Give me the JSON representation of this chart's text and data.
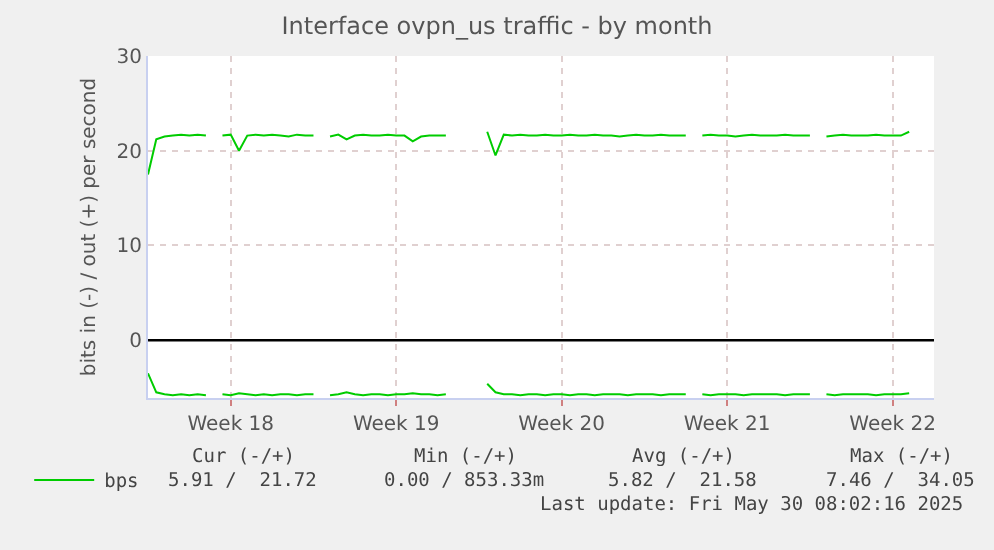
{
  "chart_data": {
    "type": "line",
    "title": "Interface ovpn_us traffic - by month",
    "ylabel": "bits in (-) / out (+) per second",
    "categories": [
      null,
      null,
      null,
      null,
      null,
      null,
      null,
      null,
      null,
      null,
      "Week 18",
      null,
      null,
      null,
      null,
      null,
      null,
      null,
      null,
      null,
      null,
      null,
      null,
      null,
      null,
      null,
      null,
      null,
      null,
      null,
      "Week 19",
      null,
      null,
      null,
      null,
      null,
      null,
      null,
      null,
      null,
      null,
      null,
      null,
      null,
      null,
      null,
      null,
      null,
      null,
      null,
      "Week 20",
      null,
      null,
      null,
      null,
      null,
      null,
      null,
      null,
      null,
      null,
      null,
      null,
      null,
      null,
      null,
      null,
      null,
      null,
      null,
      "Week 21",
      null,
      null,
      null,
      null,
      null,
      null,
      null,
      null,
      null,
      null,
      null,
      null,
      null,
      null,
      null,
      null,
      null,
      null,
      null,
      "Week 22",
      null,
      null,
      null,
      null,
      null
    ],
    "series": [
      {
        "name": "bps",
        "color": "#00cc00",
        "values": [
          17.5,
          21.2,
          21.5,
          21.6,
          21.7,
          21.6,
          21.7,
          21.6,
          null,
          21.6,
          21.7,
          20.0,
          21.6,
          21.7,
          21.6,
          21.7,
          21.6,
          21.5,
          21.7,
          21.6,
          21.6,
          null,
          21.5,
          21.7,
          21.2,
          21.6,
          21.7,
          21.6,
          21.6,
          21.7,
          21.6,
          21.6,
          21.0,
          21.5,
          21.6,
          21.6,
          21.6,
          null,
          null,
          null,
          null,
          22.0,
          19.5,
          21.7,
          21.6,
          21.7,
          21.6,
          21.6,
          21.7,
          21.6,
          21.6,
          21.7,
          21.6,
          21.6,
          21.7,
          21.6,
          21.6,
          21.5,
          21.6,
          21.7,
          21.6,
          21.6,
          21.7,
          21.6,
          21.6,
          21.6,
          null,
          21.6,
          21.7,
          21.6,
          21.6,
          21.5,
          21.6,
          21.7,
          21.6,
          21.6,
          21.6,
          21.7,
          21.6,
          21.6,
          21.6,
          null,
          21.5,
          21.6,
          21.7,
          21.6,
          21.6,
          21.6,
          21.7,
          21.6,
          21.6,
          21.6,
          22.0,
          null,
          null,
          null
        ]
      },
      {
        "color": "#00cc00",
        "values": [
          -3.5,
          -5.5,
          -5.7,
          -5.8,
          -5.7,
          -5.8,
          -5.7,
          -5.8,
          null,
          -5.7,
          -5.8,
          -5.6,
          -5.7,
          -5.8,
          -5.7,
          -5.8,
          -5.7,
          -5.7,
          -5.8,
          -5.7,
          -5.7,
          null,
          -5.8,
          -5.7,
          -5.5,
          -5.7,
          -5.8,
          -5.7,
          -5.7,
          -5.8,
          -5.7,
          -5.7,
          -5.6,
          -5.7,
          -5.7,
          -5.8,
          -5.7,
          null,
          null,
          null,
          null,
          -4.6,
          -5.5,
          -5.7,
          -5.7,
          -5.8,
          -5.7,
          -5.7,
          -5.8,
          -5.7,
          -5.7,
          -5.8,
          -5.7,
          -5.7,
          -5.8,
          -5.7,
          -5.7,
          -5.7,
          -5.8,
          -5.7,
          -5.7,
          -5.7,
          -5.8,
          -5.7,
          -5.7,
          -5.7,
          null,
          -5.7,
          -5.8,
          -5.7,
          -5.7,
          -5.7,
          -5.8,
          -5.7,
          -5.7,
          -5.7,
          -5.7,
          -5.8,
          -5.7,
          -5.7,
          -5.7,
          null,
          -5.7,
          -5.8,
          -5.7,
          -5.7,
          -5.7,
          -5.7,
          -5.8,
          -5.7,
          -5.7,
          -5.7,
          -5.6,
          null,
          null,
          null
        ]
      }
    ],
    "ylim": [
      -6.1,
      30
    ],
    "yticks": [
      0,
      10,
      20,
      30
    ],
    "ref_lines": [
      {
        "axis": "y",
        "value": 0,
        "color": "#000000"
      }
    ],
    "grid": true,
    "legend": "bottom left",
    "line_style": "solid",
    "annotations": [
      "Cur (-/+)",
      "Min (-/+)",
      "Avg (-/+)",
      "Max (-/+)",
      "5.91 /  21.72",
      "0.00 / 853.33m",
      "5.82 /  21.58",
      "7.46 /  34.05",
      "Last update: Fri May 30 08:02:16 2025"
    ]
  }
}
